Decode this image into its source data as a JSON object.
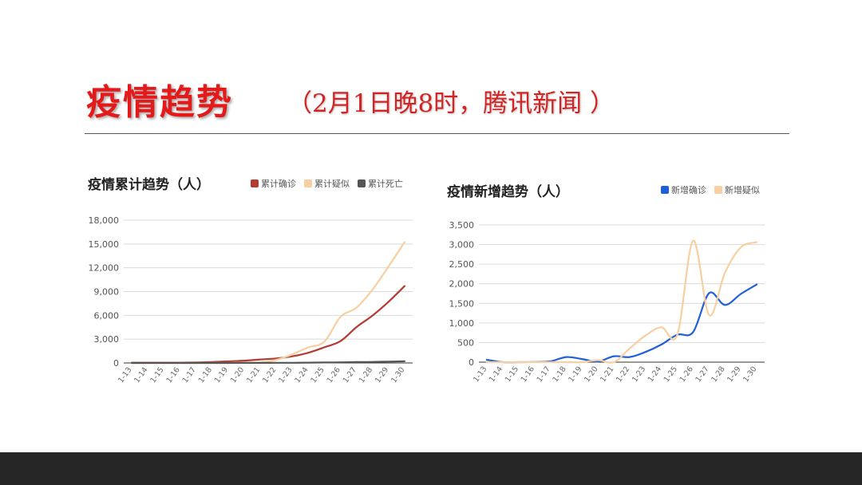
{
  "slide": {
    "title": "疫情趋势",
    "subtitle": "（2月1日晚8时，腾讯新闻 ）"
  },
  "chart_data": [
    {
      "type": "line",
      "title": "疫情累计趋势（人）",
      "x": [
        "1-13",
        "1-14",
        "1-15",
        "1-16",
        "1-17",
        "1-18",
        "1-19",
        "1-20",
        "1-21",
        "1-22",
        "1-23",
        "1-24",
        "1-25",
        "1-26",
        "1-27",
        "1-28",
        "1-29",
        "1-30"
      ],
      "ylim": [
        0,
        18000
      ],
      "yticks": [
        0,
        3000,
        6000,
        9000,
        12000,
        15000,
        18000
      ],
      "ytick_labels": [
        "0",
        "3,000",
        "6,000",
        "9,000",
        "12,000",
        "15,000",
        "18,000"
      ],
      "grid": true,
      "legend_position": "top-right",
      "series": [
        {
          "name": "累计确诊",
          "color": "#b23b32",
          "values": [
            41,
            41,
            41,
            45,
            62,
            121,
            198,
            291,
            440,
            571,
            830,
            1287,
            1975,
            2744,
            4515,
            5974,
            7711,
            9692
          ]
        },
        {
          "name": "累计疑似",
          "color": "#f7cfa0",
          "values": [
            0,
            0,
            0,
            0,
            0,
            0,
            0,
            54,
            37,
            393,
            1072,
            1965,
            2684,
            5794,
            6973,
            9239,
            12167,
            15238
          ]
        },
        {
          "name": "累计死亡",
          "color": "#555555",
          "values": [
            1,
            1,
            2,
            2,
            2,
            3,
            4,
            6,
            9,
            17,
            25,
            41,
            56,
            80,
            106,
            132,
            170,
            213
          ]
        }
      ]
    },
    {
      "type": "line",
      "title": "疫情新增趋势（人）",
      "x": [
        "1-13",
        "1-14",
        "1-15",
        "1-16",
        "1-17",
        "1-18",
        "1-19",
        "1-20",
        "1-21",
        "1-22",
        "1-23",
        "1-24",
        "1-25",
        "1-26",
        "1-27",
        "1-28",
        "1-29",
        "1-30"
      ],
      "ylim": [
        0,
        3500
      ],
      "yticks": [
        0,
        500,
        1000,
        1500,
        2000,
        2500,
        3000,
        3500
      ],
      "ytick_labels": [
        "0",
        "500",
        "1,000",
        "1,500",
        "2,000",
        "2,500",
        "3,000",
        "3,500"
      ],
      "grid": true,
      "legend_position": "top-right",
      "series": [
        {
          "name": "新增确诊",
          "color": "#1f5fd9",
          "values": [
            60,
            0,
            0,
            5,
            20,
            130,
            80,
            15,
            150,
            130,
            260,
            450,
            700,
            770,
            1760,
            1460,
            1740,
            1980
          ]
        },
        {
          "name": "新增疑似",
          "color": "#f7cfa0",
          "values": [
            0,
            0,
            0,
            0,
            0,
            0,
            0,
            50,
            0,
            350,
            680,
            890,
            700,
            3100,
            1200,
            2280,
            2930,
            3060
          ]
        }
      ]
    }
  ]
}
